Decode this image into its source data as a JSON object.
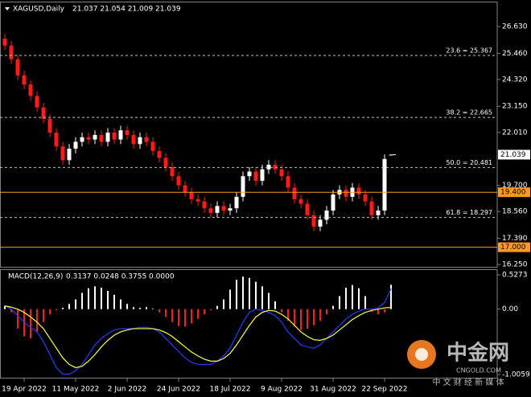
{
  "chart_data": [
    {
      "type": "candlestick",
      "title": "XAGUSD,Daily",
      "status": "21.037 21.054 21.009 21.039",
      "up_color": "#ffffff",
      "down_color": "#ff1a1a",
      "xlim": [
        -0.75,
        76.5
      ],
      "ylim": [
        16.146,
        27.717
      ],
      "yticks": [
        {
          "value": 26.63,
          "label": "26.630"
        },
        {
          "value": 25.46,
          "label": "25.460"
        },
        {
          "value": 24.32,
          "label": "24.320"
        },
        {
          "value": 23.15,
          "label": "23.150"
        },
        {
          "value": 22.01,
          "label": "22.010"
        },
        {
          "value": 19.7,
          "label": "19.700"
        },
        {
          "value": 18.56,
          "label": "18.560"
        },
        {
          "value": 17.39,
          "label": "17.390"
        },
        {
          "value": 16.25,
          "label": "16.250"
        }
      ],
      "open": [
        26.1,
        25.8,
        25.2,
        24.5,
        24.1,
        23.6,
        23.1,
        22.6,
        22.0,
        21.4,
        20.8,
        21.3,
        21.6,
        21.8,
        21.7,
        21.9,
        21.6,
        22.0,
        21.7,
        22.1,
        21.9,
        21.5,
        21.8,
        21.6,
        21.2,
        20.9,
        20.5,
        20.1,
        19.7,
        19.4,
        19.1,
        19.0,
        18.7,
        18.5,
        18.8,
        18.6,
        18.7,
        19.2,
        20.1,
        20.3,
        19.9,
        20.4,
        20.6,
        20.4,
        20.1,
        19.6,
        19.1,
        18.9,
        18.4,
        17.9,
        18.2,
        18.6,
        19.3,
        19.5,
        19.2,
        19.6,
        19.3,
        19.0,
        18.4,
        18.6,
        21.037
      ],
      "high": [
        26.3,
        26.0,
        25.4,
        24.7,
        24.3,
        23.8,
        23.3,
        22.8,
        22.2,
        21.6,
        21.5,
        21.8,
        22.0,
        22.0,
        22.1,
        22.1,
        22.2,
        22.2,
        22.3,
        22.3,
        22.1,
        22.0,
        22.0,
        21.8,
        21.4,
        21.1,
        20.7,
        20.3,
        19.9,
        19.6,
        19.3,
        19.2,
        18.9,
        19.0,
        19.0,
        18.9,
        19.4,
        20.3,
        20.5,
        20.5,
        20.6,
        20.8,
        20.8,
        20.6,
        20.3,
        19.8,
        19.3,
        19.1,
        18.6,
        18.4,
        18.8,
        19.5,
        19.7,
        19.7,
        19.8,
        19.8,
        19.5,
        19.2,
        18.8,
        21.05,
        21.054
      ],
      "low": [
        25.6,
        25.0,
        24.3,
        23.9,
        23.4,
        22.9,
        22.4,
        21.8,
        21.2,
        20.6,
        20.6,
        21.1,
        21.4,
        21.5,
        21.5,
        21.4,
        21.4,
        21.5,
        21.5,
        21.7,
        21.3,
        21.3,
        21.4,
        21.0,
        20.7,
        20.3,
        19.9,
        19.5,
        19.2,
        18.9,
        18.8,
        18.5,
        18.3,
        18.3,
        18.4,
        18.4,
        18.5,
        19.0,
        19.9,
        19.7,
        19.7,
        20.2,
        20.2,
        19.9,
        19.4,
        18.9,
        18.7,
        18.2,
        17.7,
        17.7,
        18.0,
        18.4,
        19.1,
        19.0,
        19.0,
        19.1,
        18.8,
        18.2,
        18.2,
        18.4,
        21.009
      ],
      "close": [
        25.8,
        25.2,
        24.5,
        24.1,
        23.6,
        23.1,
        22.6,
        22.0,
        21.4,
        20.8,
        21.3,
        21.6,
        21.8,
        21.7,
        21.9,
        21.6,
        22.0,
        21.7,
        22.1,
        21.9,
        21.5,
        21.8,
        21.6,
        21.2,
        20.9,
        20.5,
        20.1,
        19.7,
        19.4,
        19.1,
        19.0,
        18.7,
        18.5,
        18.8,
        18.6,
        18.7,
        19.2,
        20.1,
        20.3,
        19.9,
        20.4,
        20.6,
        20.4,
        20.1,
        19.6,
        19.1,
        18.9,
        18.4,
        17.9,
        18.2,
        18.6,
        19.3,
        19.5,
        19.2,
        19.6,
        19.3,
        19.0,
        18.4,
        18.6,
        20.85,
        21.039
      ],
      "levels": [
        {
          "label": "23.6 = 25.367",
          "value": 25.367
        },
        {
          "label": "38.2 = 22.665",
          "value": 22.665
        },
        {
          "label": "50.0 = 20.481",
          "value": 20.481
        },
        {
          "label": "61.8 = 18.297",
          "value": 18.297
        }
      ],
      "lines": [
        {
          "value": 19.4,
          "label": "19.400",
          "color": "#ff9a1a"
        },
        {
          "value": 17.0,
          "label": "17.000",
          "color": "#ff9a1a"
        }
      ],
      "last_price": {
        "value": 21.039,
        "label": "21.039"
      }
    },
    {
      "type": "macd",
      "title": "MACD(12,26,9)",
      "status": "0.3137 0.0248 0.3755 0.0000",
      "xlim": [
        -0.75,
        76.5
      ],
      "ylim": [
        -1.055,
        0.6015
      ],
      "yticks": [
        0.5273,
        {
          "value": 0,
          "label": "0.00"
        },
        -1.0059
      ],
      "xticks": [
        {
          "value": 3,
          "label": "19 Apr 2022"
        },
        {
          "value": 11,
          "label": "11 May 2022"
        },
        {
          "value": 19,
          "label": "2 Jun 2022"
        },
        {
          "value": 27,
          "label": "24 Jun 2022"
        },
        {
          "value": 35,
          "label": "18 Jul 2022"
        },
        {
          "value": 43,
          "label": "9 Aug 2022"
        },
        {
          "value": 51,
          "label": "31 Aug 2022"
        },
        {
          "value": 59,
          "label": "22 Sep 2022"
        }
      ],
      "histogram": {
        "up_color": "#ffffff",
        "down_color": "#ff1a1a",
        "values": [
          0.05,
          -0.05,
          -0.3,
          -0.42,
          -0.45,
          -0.35,
          -0.2,
          -0.08,
          -0.02,
          0.02,
          0.08,
          0.15,
          0.25,
          0.32,
          0.35,
          0.33,
          0.28,
          0.22,
          0.15,
          0.08,
          0.03,
          0.02,
          0.03,
          0.01,
          -0.05,
          -0.12,
          -0.2,
          -0.26,
          -0.27,
          -0.22,
          -0.15,
          -0.08,
          -0.02,
          0.05,
          0.15,
          0.3,
          0.45,
          0.5,
          0.48,
          0.42,
          0.35,
          0.25,
          0.12,
          -0.05,
          -0.18,
          -0.27,
          -0.32,
          -0.3,
          -0.25,
          -0.18,
          -0.08,
          0.05,
          0.2,
          0.33,
          0.37,
          0.32,
          0.2,
          -0.04,
          -0.08,
          -0.05,
          0.3755
        ]
      },
      "series": [
        {
          "color": "#2040ff",
          "values": [
            0.05,
            0.0,
            -0.1,
            -0.2,
            -0.28,
            -0.35,
            -0.5,
            -0.7,
            -0.9,
            -1.0,
            -1.0,
            -0.95,
            -0.85,
            -0.7,
            -0.55,
            -0.45,
            -0.38,
            -0.32,
            -0.3,
            -0.3,
            -0.3,
            -0.28,
            -0.28,
            -0.3,
            -0.35,
            -0.45,
            -0.55,
            -0.65,
            -0.75,
            -0.82,
            -0.85,
            -0.85,
            -0.85,
            -0.8,
            -0.72,
            -0.6,
            -0.4,
            -0.2,
            -0.05,
            0.0,
            -0.02,
            -0.05,
            -0.1,
            -0.2,
            -0.35,
            -0.45,
            -0.55,
            -0.58,
            -0.6,
            -0.55,
            -0.45,
            -0.35,
            -0.25,
            -0.15,
            -0.08,
            -0.03,
            0.0,
            0.0,
            0.02,
            0.1,
            0.3137
          ]
        },
        {
          "color": "#ffff40",
          "values": [
            0.05,
            0.03,
            0.0,
            -0.05,
            -0.12,
            -0.2,
            -0.3,
            -0.45,
            -0.6,
            -0.75,
            -0.85,
            -0.9,
            -0.88,
            -0.8,
            -0.7,
            -0.58,
            -0.48,
            -0.4,
            -0.35,
            -0.32,
            -0.3,
            -0.3,
            -0.3,
            -0.3,
            -0.32,
            -0.36,
            -0.42,
            -0.5,
            -0.58,
            -0.66,
            -0.72,
            -0.77,
            -0.8,
            -0.8,
            -0.76,
            -0.68,
            -0.55,
            -0.4,
            -0.25,
            -0.12,
            -0.05,
            -0.02,
            -0.03,
            -0.08,
            -0.15,
            -0.25,
            -0.35,
            -0.42,
            -0.47,
            -0.48,
            -0.45,
            -0.4,
            -0.32,
            -0.24,
            -0.16,
            -0.1,
            -0.05,
            -0.02,
            0.0,
            0.02,
            0.0248
          ]
        }
      ]
    }
  ],
  "watermark": {
    "name": "中金网",
    "site": "CNGOLD.COM",
    "slogan": "中 文 财 经 新 媒 体"
  }
}
